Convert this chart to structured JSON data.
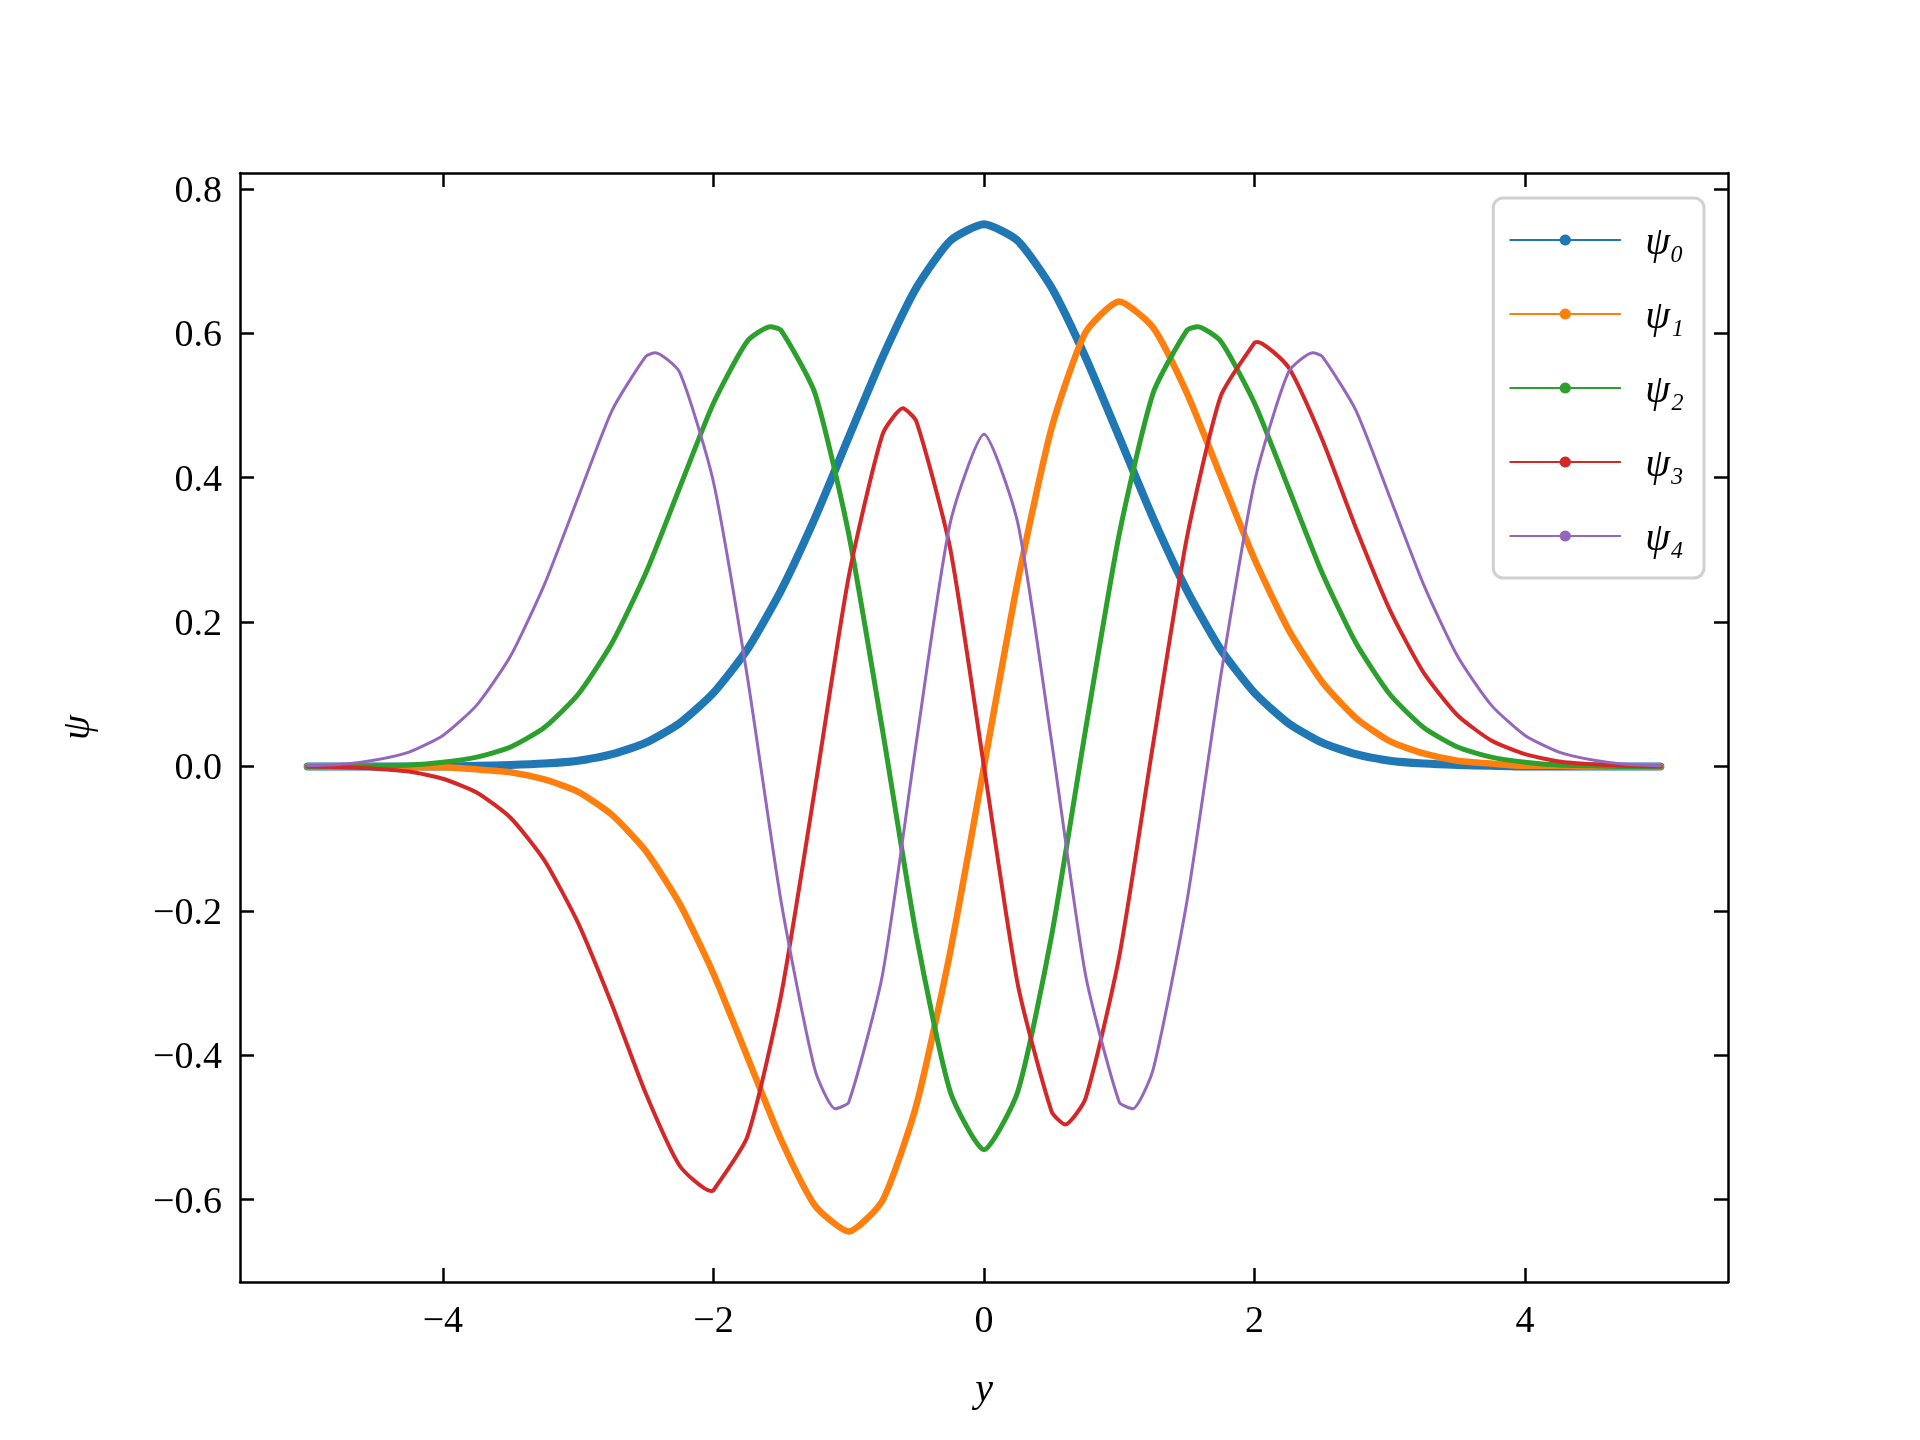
{
  "chart_data": {
    "type": "line",
    "xlabel": "y",
    "ylabel": "ψ",
    "xlim": [
      -5.5,
      5.5
    ],
    "ylim": [
      -0.714,
      0.822
    ],
    "xticks": [
      {
        "value": -4,
        "label": "−4"
      },
      {
        "value": -2,
        "label": "−2"
      },
      {
        "value": 0,
        "label": "0"
      },
      {
        "value": 2,
        "label": "2"
      },
      {
        "value": 4,
        "label": "4"
      }
    ],
    "yticks": [
      {
        "value": -0.6,
        "label": "−0.6"
      },
      {
        "value": -0.4,
        "label": "−0.4"
      },
      {
        "value": -0.2,
        "label": "−0.2"
      },
      {
        "value": 0,
        "label": "0.0"
      },
      {
        "value": 0.2,
        "label": "0.2"
      },
      {
        "value": 0.4,
        "label": "0.4"
      },
      {
        "value": 0.6,
        "label": "0.6"
      },
      {
        "value": 0.8,
        "label": "0.8"
      }
    ],
    "legend": "top right",
    "marker": "none",
    "line_style": "solid",
    "x": [
      -5,
      -4.75,
      -4.5,
      -4.25,
      -4,
      -3.75,
      -3.5,
      -3.25,
      -3,
      -2.75,
      -2.5,
      -2.25,
      -2,
      -1.75,
      -1.5,
      -1.25,
      -1,
      -0.75,
      -0.5,
      -0.25,
      0,
      0.25,
      0.5,
      0.75,
      1,
      1.25,
      1.5,
      1.75,
      2,
      2.25,
      2.5,
      2.75,
      3,
      3.25,
      3.5,
      3.75,
      4,
      4.25,
      4.5,
      4.75,
      5
    ],
    "series": [
      {
        "name": "ψ₀",
        "color": "#1f77b4",
        "values": [
          0,
          0,
          0,
          0,
          0,
          0.001,
          0.002,
          0.004,
          0.008,
          0.017,
          0.033,
          0.06,
          0.102,
          0.162,
          0.244,
          0.344,
          0.456,
          0.567,
          0.663,
          0.728,
          0.751,
          0.728,
          0.663,
          0.567,
          0.456,
          0.344,
          0.244,
          0.162,
          0.102,
          0.06,
          0.033,
          0.017,
          0.008,
          0.004,
          0.002,
          0.001,
          0,
          0,
          0,
          0,
          0
        ]
      },
      {
        "name": "ψ₁",
        "color": "#ff7f0e",
        "values": [
          0,
          0,
          0,
          -0.001,
          -0.001,
          -0.004,
          -0.008,
          -0.018,
          -0.035,
          -0.067,
          -0.117,
          -0.19,
          -0.287,
          -0.402,
          -0.517,
          -0.608,
          -0.644,
          -0.601,
          -0.469,
          -0.257,
          0,
          0.257,
          0.469,
          0.601,
          0.644,
          0.608,
          0.517,
          0.402,
          0.287,
          0.19,
          0.117,
          0.067,
          0.035,
          0.018,
          0.008,
          0.004,
          0.001,
          0.001,
          0,
          0,
          0
        ]
      },
      {
        "name": "ψ₂",
        "color": "#2ca02c",
        "x": [
          -5,
          -4.75,
          -4.5,
          -4.25,
          -4,
          -3.75,
          -3.5,
          -3.25,
          -3,
          -2.75,
          -2.5,
          -2.25,
          -2,
          -1.75,
          -1.58,
          -1.5,
          -1.25,
          -1,
          -0.75,
          -0.5,
          -0.25,
          0,
          0.25,
          0.5,
          0.75,
          1,
          1.25,
          1.5,
          1.58,
          1.75,
          2,
          2.25,
          2.5,
          2.75,
          3,
          3.25,
          3.5,
          3.75,
          4,
          4.25,
          4.5,
          4.75,
          5
        ],
        "values": [
          0,
          0,
          0.001,
          0.002,
          0.006,
          0.013,
          0.027,
          0.054,
          0.1,
          0.171,
          0.268,
          0.386,
          0.503,
          0.589,
          0.609,
          0.604,
          0.517,
          0.322,
          0.05,
          -0.234,
          -0.45,
          -0.531,
          -0.45,
          -0.234,
          0.05,
          0.322,
          0.517,
          0.604,
          0.609,
          0.589,
          0.503,
          0.386,
          0.268,
          0.171,
          0.1,
          0.054,
          0.027,
          0.013,
          0.006,
          0.002,
          0.001,
          0,
          0
        ]
      },
      {
        "name": "ψ₃",
        "color": "#d62728",
        "x": [
          -5,
          -4.75,
          -4.5,
          -4.25,
          -4,
          -3.75,
          -3.5,
          -3.25,
          -3,
          -2.75,
          -2.5,
          -2.25,
          -2.02,
          -2,
          -1.75,
          -1.5,
          -1.25,
          -1,
          -0.75,
          -0.6,
          -0.5,
          -0.25,
          0,
          0.25,
          0.5,
          0.6,
          0.75,
          1,
          1.25,
          1.5,
          1.75,
          2,
          2.02,
          2.25,
          2.5,
          2.75,
          3,
          3.25,
          3.5,
          3.75,
          4,
          4.25,
          4.5,
          4.75,
          5
        ],
        "values": [
          0,
          -0.001,
          -0.003,
          -0.007,
          -0.017,
          -0.036,
          -0.071,
          -0.13,
          -0.217,
          -0.33,
          -0.453,
          -0.553,
          -0.588,
          -0.587,
          -0.513,
          -0.317,
          -0.031,
          0.263,
          0.46,
          0.496,
          0.478,
          0.302,
          0,
          -0.302,
          -0.478,
          -0.496,
          -0.46,
          -0.263,
          0.031,
          0.317,
          0.513,
          0.587,
          0.588,
          0.553,
          0.453,
          0.33,
          0.217,
          0.13,
          0.071,
          0.036,
          0.017,
          0.007,
          0.003,
          0.001,
          0
        ]
      },
      {
        "name": "ψ₄",
        "color": "#9467bd",
        "x": [
          -5,
          -4.75,
          -4.5,
          -4.25,
          -4,
          -3.75,
          -3.5,
          -3.25,
          -3,
          -2.75,
          -2.5,
          -2.43,
          -2.25,
          -2,
          -1.75,
          -1.5,
          -1.25,
          -1.1,
          -1,
          -0.75,
          -0.5,
          -0.25,
          0,
          0.25,
          0.5,
          0.75,
          1,
          1.1,
          1.25,
          1.5,
          1.75,
          2,
          2.25,
          2.43,
          2.5,
          2.75,
          3,
          3.25,
          3.5,
          3.75,
          4,
          4.25,
          4.5,
          4.75,
          5
        ],
        "values": [
          0.001,
          0.003,
          0.009,
          0.02,
          0.043,
          0.085,
          0.153,
          0.252,
          0.373,
          0.493,
          0.568,
          0.573,
          0.546,
          0.394,
          0.125,
          -0.187,
          -0.42,
          -0.474,
          -0.465,
          -0.288,
          0.034,
          0.337,
          0.46,
          0.337,
          0.034,
          -0.288,
          -0.465,
          -0.474,
          -0.42,
          -0.187,
          0.125,
          0.394,
          0.546,
          0.573,
          0.568,
          0.493,
          0.373,
          0.252,
          0.153,
          0.085,
          0.043,
          0.02,
          0.009,
          0.003,
          0.001
        ]
      }
    ]
  }
}
